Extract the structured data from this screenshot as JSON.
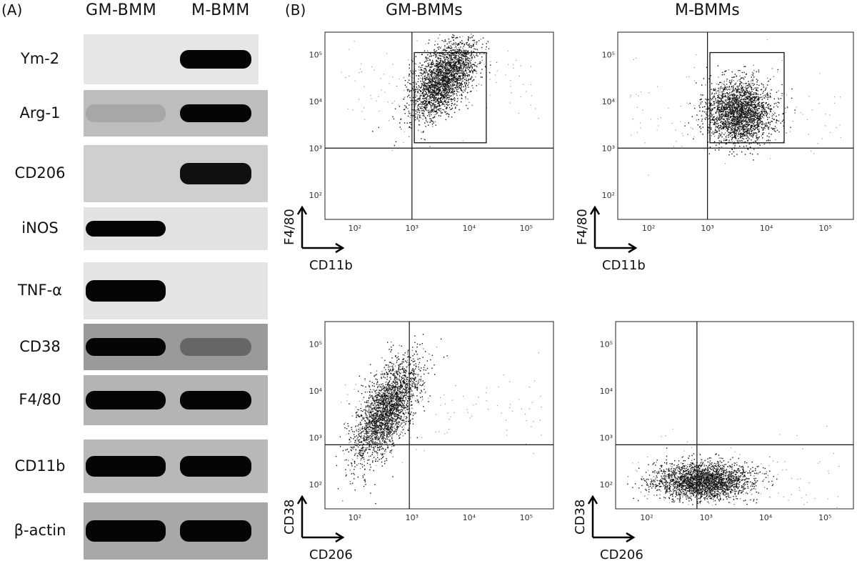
{
  "panel_a": {
    "letter": "(A)",
    "lane_headers": [
      "GM-BMM",
      "M-BMM"
    ],
    "blots": [
      {
        "label": "Ym-2",
        "bg": "#e6e6e6",
        "bands": [
          {
            "lane": 2,
            "intensity": 1.0
          }
        ]
      },
      {
        "label": "Arg-1",
        "bg": "#bdbdbd",
        "bands": [
          {
            "lane": 1,
            "intensity": 0.12
          },
          {
            "lane": 2,
            "intensity": 1.0
          }
        ]
      },
      {
        "label": "CD206",
        "bg": "#cfcfcf",
        "bands": [
          {
            "lane": 2,
            "intensity": 0.95
          }
        ]
      },
      {
        "label": "iNOS",
        "bg": "#e2e2e2",
        "bands": [
          {
            "lane": 1,
            "intensity": 1.0
          }
        ]
      },
      {
        "label": "TNF-α",
        "bg": "#e4e4e4",
        "bands": [
          {
            "lane": 1,
            "intensity": 1.0
          }
        ]
      },
      {
        "label": "CD38",
        "bg": "#9a9a9a",
        "bands": [
          {
            "lane": 1,
            "intensity": 1.0
          },
          {
            "lane": 2,
            "intensity": 0.35
          }
        ]
      },
      {
        "label": "F4/80",
        "bg": "#b4b4b4",
        "bands": [
          {
            "lane": 1,
            "intensity": 1.0
          },
          {
            "lane": 2,
            "intensity": 1.0
          }
        ]
      },
      {
        "label": "CD11b",
        "bg": "#b8b8b8",
        "bands": [
          {
            "lane": 1,
            "intensity": 1.0
          },
          {
            "lane": 2,
            "intensity": 1.0
          }
        ]
      },
      {
        "label": "β-actin",
        "bg": "#a8a8a8",
        "bands": [
          {
            "lane": 1,
            "intensity": 1.0
          },
          {
            "lane": 2,
            "intensity": 1.0
          }
        ]
      }
    ]
  },
  "panel_b": {
    "letter": "(B)",
    "column_titles": [
      "GM-BMMs",
      "M-BMMs"
    ],
    "tick_labels": [
      "10²",
      "10³",
      "10⁴",
      "10⁵"
    ],
    "plots": [
      {
        "id": "gm-f480",
        "xlabel": "CD11b",
        "ylabel": "F4/80",
        "density": "high"
      },
      {
        "id": "m-f480",
        "xlabel": "CD11b",
        "ylabel": "F4/80",
        "density": "high"
      },
      {
        "id": "gm-cd38",
        "xlabel": "CD206",
        "ylabel": "CD38",
        "density": "high"
      },
      {
        "id": "m-cd38",
        "xlabel": "CD206",
        "ylabel": "CD38",
        "density": "high"
      }
    ]
  },
  "chart_data": [
    {
      "type": "scatter",
      "title": "GM-BMMs",
      "xlabel": "CD11b",
      "ylabel": "F4/80",
      "xscale": "log",
      "yscale": "log",
      "xlim": [
        30,
        300000
      ],
      "ylim": [
        30,
        300000
      ],
      "quadrant_x": 1000,
      "quadrant_y": 1000,
      "gate": {
        "x": [
          1100,
          20000
        ],
        "y": [
          1300,
          110000
        ]
      },
      "population_center": [
        3500,
        30000
      ]
    },
    {
      "type": "scatter",
      "title": "M-BMMs",
      "xlabel": "CD11b",
      "ylabel": "F4/80",
      "xscale": "log",
      "yscale": "log",
      "xlim": [
        30,
        300000
      ],
      "ylim": [
        30,
        300000
      ],
      "quadrant_x": 1000,
      "quadrant_y": 1000,
      "gate": {
        "x": [
          1100,
          20000
        ],
        "y": [
          1300,
          110000
        ]
      },
      "population_center": [
        3500,
        6000
      ]
    },
    {
      "type": "scatter",
      "xlabel": "CD206",
      "ylabel": "CD38",
      "xscale": "log",
      "yscale": "log",
      "xlim": [
        30,
        300000
      ],
      "ylim": [
        30,
        300000
      ],
      "quadrant_x": 900,
      "quadrant_y": 700,
      "population_center": [
        350,
        4000
      ]
    },
    {
      "type": "scatter",
      "xlabel": "CD206",
      "ylabel": "CD38",
      "xscale": "log",
      "yscale": "log",
      "xlim": [
        30,
        300000
      ],
      "ylim": [
        30,
        300000
      ],
      "quadrant_x": 700,
      "quadrant_y": 700,
      "population_center": [
        900,
        120
      ]
    }
  ]
}
